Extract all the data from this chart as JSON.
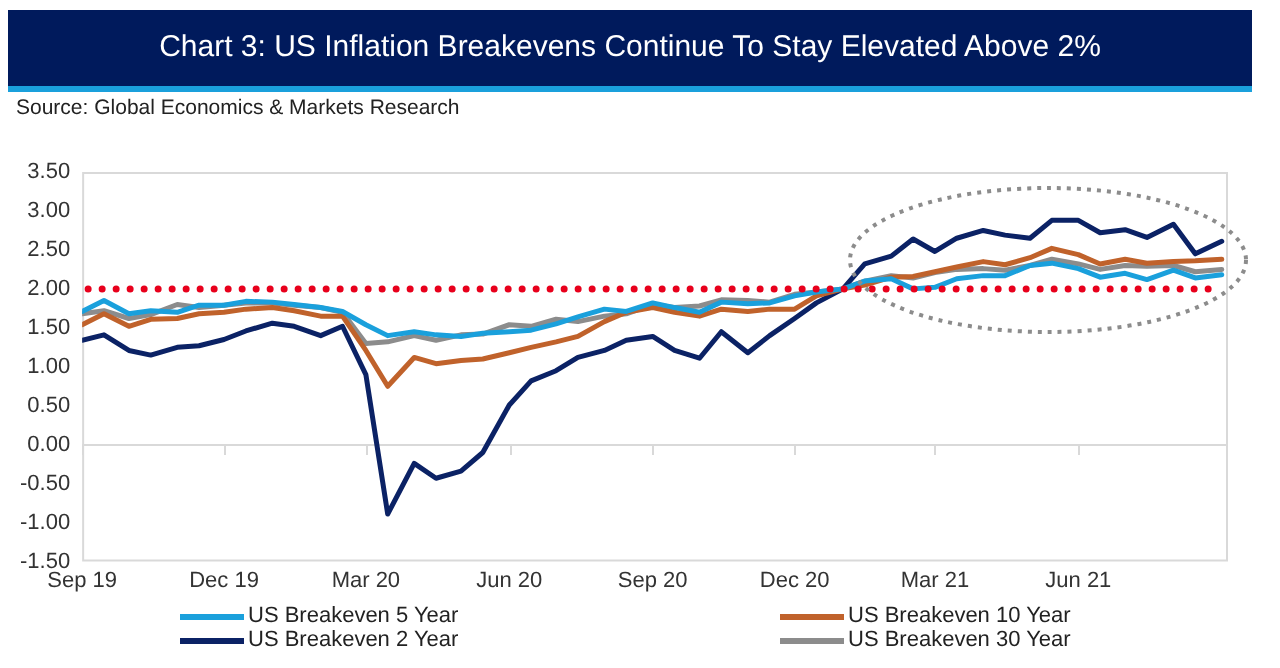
{
  "chart_data": {
    "type": "line",
    "title": "Chart 3: US Inflation Breakevens Continue To Stay Elevated Above 2%",
    "annotations": [
      "Source: Global Economics & Markets Research"
    ],
    "x": [
      "2019-09-01",
      "2019-09-15",
      "2019-10-01",
      "2019-10-15",
      "2019-11-01",
      "2019-11-15",
      "2019-12-01",
      "2019-12-15",
      "2020-01-01",
      "2020-01-15",
      "2020-02-01",
      "2020-02-15",
      "2020-03-01",
      "2020-03-15",
      "2020-04-01",
      "2020-04-15",
      "2020-05-01",
      "2020-05-15",
      "2020-06-01",
      "2020-06-15",
      "2020-07-01",
      "2020-07-15",
      "2020-08-01",
      "2020-08-15",
      "2020-09-01",
      "2020-09-15",
      "2020-10-01",
      "2020-10-15",
      "2020-11-01",
      "2020-11-15",
      "2020-12-01",
      "2020-12-15",
      "2021-01-01",
      "2021-01-15",
      "2021-02-01",
      "2021-02-15",
      "2021-03-01",
      "2021-03-15",
      "2021-04-01",
      "2021-04-15",
      "2021-05-01",
      "2021-05-15",
      "2021-06-01",
      "2021-06-15",
      "2021-07-01",
      "2021-07-15",
      "2021-08-01",
      "2021-08-15",
      "2021-09-01"
    ],
    "series": [
      {
        "name": "US Breakeven 5 Year",
        "color": "#1aa0dc",
        "values": [
          1.71,
          1.85,
          1.68,
          1.72,
          1.7,
          1.79,
          1.79,
          1.84,
          1.83,
          1.8,
          1.76,
          1.71,
          1.54,
          1.4,
          1.45,
          1.41,
          1.39,
          1.43,
          1.45,
          1.47,
          1.55,
          1.64,
          1.74,
          1.71,
          1.82,
          1.76,
          1.7,
          1.83,
          1.81,
          1.82,
          1.91,
          1.96,
          2.0,
          2.1,
          2.13,
          2.0,
          2.02,
          2.13,
          2.17,
          2.17,
          2.3,
          2.33,
          2.26,
          2.15,
          2.2,
          2.12,
          2.24,
          2.14,
          2.18
        ]
      },
      {
        "name": "US Breakeven 10 Year",
        "color": "#c0622b",
        "values": [
          1.54,
          1.68,
          1.52,
          1.61,
          1.62,
          1.68,
          1.7,
          1.74,
          1.76,
          1.72,
          1.65,
          1.65,
          1.21,
          0.75,
          1.12,
          1.04,
          1.08,
          1.1,
          1.18,
          1.25,
          1.32,
          1.39,
          1.58,
          1.7,
          1.76,
          1.7,
          1.65,
          1.74,
          1.71,
          1.74,
          1.74,
          1.91,
          2.0,
          2.05,
          2.15,
          2.16,
          2.22,
          2.28,
          2.35,
          2.31,
          2.4,
          2.52,
          2.44,
          2.32,
          2.38,
          2.33,
          2.35,
          2.36,
          2.38
        ]
      },
      {
        "name": "US Breakeven 2 Year",
        "color": "#0b2265",
        "values": [
          1.34,
          1.41,
          1.21,
          1.15,
          1.25,
          1.27,
          1.35,
          1.46,
          1.56,
          1.52,
          1.4,
          1.52,
          0.9,
          -0.89,
          -0.24,
          -0.43,
          -0.34,
          -0.1,
          0.51,
          0.82,
          0.95,
          1.12,
          1.21,
          1.34,
          1.39,
          1.21,
          1.11,
          1.45,
          1.18,
          1.4,
          1.62,
          1.82,
          2.0,
          2.32,
          2.42,
          2.64,
          2.48,
          2.65,
          2.75,
          2.69,
          2.65,
          2.88,
          2.88,
          2.72,
          2.76,
          2.66,
          2.83,
          2.45,
          2.61
        ]
      },
      {
        "name": "US Breakeven 30 Year",
        "color": "#8c8c8c",
        "values": [
          1.68,
          1.72,
          1.62,
          1.67,
          1.8,
          1.76,
          1.79,
          1.82,
          1.82,
          1.79,
          1.76,
          1.7,
          1.3,
          1.32,
          1.4,
          1.34,
          1.41,
          1.42,
          1.54,
          1.52,
          1.61,
          1.58,
          1.65,
          1.68,
          1.8,
          1.76,
          1.78,
          1.86,
          1.85,
          1.83,
          1.93,
          1.96,
          2.0,
          2.1,
          2.17,
          2.14,
          2.21,
          2.25,
          2.26,
          2.24,
          2.3,
          2.38,
          2.32,
          2.25,
          2.3,
          2.29,
          2.3,
          2.22,
          2.25
        ]
      }
    ],
    "xlim": [
      "2019-09-01",
      "2021-09-05"
    ],
    "xticks": [
      {
        "value": "2019-09-01",
        "label": "Sep 19"
      },
      {
        "value": "2019-12-01",
        "label": "Dec 19"
      },
      {
        "value": "2020-03-01",
        "label": "Mar 20"
      },
      {
        "value": "2020-06-01",
        "label": "Jun 20"
      },
      {
        "value": "2020-09-01",
        "label": "Sep 20"
      },
      {
        "value": "2020-12-01",
        "label": "Dec 20"
      },
      {
        "value": "2021-03-01",
        "label": "Mar 21"
      },
      {
        "value": "2021-06-01",
        "label": "Jun 21"
      }
    ],
    "ylim": [
      -1.5,
      3.5
    ],
    "yticks": [
      {
        "value": -1.5,
        "label": "-1.50"
      },
      {
        "value": -1,
        "label": "-1.00"
      },
      {
        "value": -0.5,
        "label": "-0.50"
      },
      {
        "value": 0,
        "label": "0.00"
      },
      {
        "value": 0.5,
        "label": "0.50"
      },
      {
        "value": 1,
        "label": "1.00"
      },
      {
        "value": 1.5,
        "label": "1.50"
      },
      {
        "value": 2,
        "label": "2.00"
      },
      {
        "value": 2.5,
        "label": "2.50"
      },
      {
        "value": 3,
        "label": "3.00"
      },
      {
        "value": 3.5,
        "label": "3.50"
      }
    ],
    "ref_lines": [
      {
        "axis": "y",
        "value": 2,
        "color": "#e8001c",
        "line_style": "dotted"
      }
    ],
    "grid": false,
    "legend": "bottom",
    "marker": "none",
    "line_style": "solid"
  }
}
